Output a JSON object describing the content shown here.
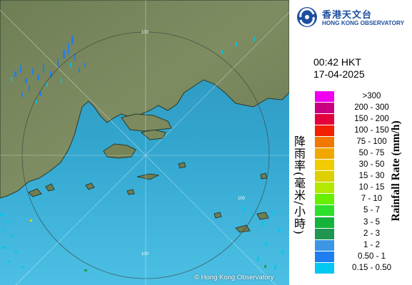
{
  "map": {
    "range_ring_label": "100",
    "copyright": "© Hong Kong Observatory"
  },
  "logo": {
    "zh": "香港天文台",
    "en": "HONG KONG OBSERVATORY"
  },
  "time": "00:42 HKT",
  "date": "17-04-2025",
  "legend": {
    "title_zh": "降雨率(毫米/小時)",
    "title_en": "Rainfall Rate (mm/h)",
    "items": [
      {
        "label": ">300",
        "color": "#f000f0"
      },
      {
        "label": "200 - 300",
        "color": "#c80080"
      },
      {
        "label": "150 - 200",
        "color": "#e4003c"
      },
      {
        "label": "100 - 150",
        "color": "#f02000"
      },
      {
        "label": "75 - 100",
        "color": "#f07800"
      },
      {
        "label": "50 - 75",
        "color": "#f0a800"
      },
      {
        "label": "30 - 50",
        "color": "#f0cc00"
      },
      {
        "label": "15 - 30",
        "color": "#dcd000"
      },
      {
        "label": "10 - 15",
        "color": "#b4e800"
      },
      {
        "label": "7 - 10",
        "color": "#66f000"
      },
      {
        "label": "5 - 7",
        "color": "#2ce02c"
      },
      {
        "label": "3 - 5",
        "color": "#14b43c"
      },
      {
        "label": "2 - 3",
        "color": "#1e9650"
      },
      {
        "label": "1 - 2",
        "color": "#3c96e6"
      },
      {
        "label": "0.50 - 1",
        "color": "#1e7ef0"
      },
      {
        "label": "0.15 - 0.50",
        "color": "#00c8f0"
      }
    ]
  }
}
